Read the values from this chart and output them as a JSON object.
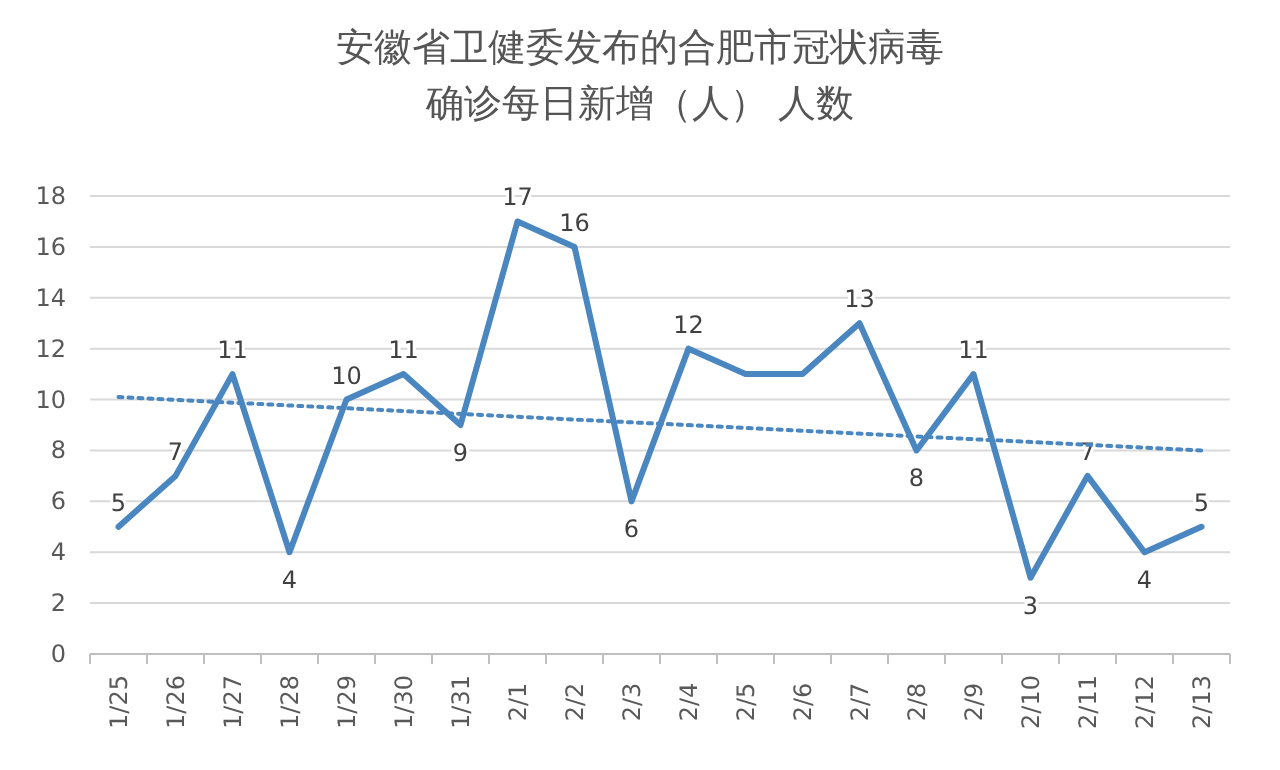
{
  "chart_data": {
    "type": "line",
    "title": "安徽省卫健委发布的合肥市冠状病毒确诊每日新增（人） 人数",
    "categories": [
      "1/25",
      "1/26",
      "1/27",
      "1/28",
      "1/29",
      "1/30",
      "1/31",
      "2/1",
      "2/2",
      "2/3",
      "2/4",
      "2/5",
      "2/6",
      "2/7",
      "2/8",
      "2/9",
      "2/10",
      "2/11",
      "2/12",
      "2/13"
    ],
    "series": [
      {
        "type": "line",
        "color": "#4a86c0",
        "values": [
          5,
          7,
          11,
          4,
          10,
          11,
          9,
          17,
          16,
          6,
          12,
          11,
          11,
          13,
          8,
          11,
          3,
          7,
          4,
          5
        ],
        "value_labels": [
          "5",
          "7",
          "11",
          "4",
          "10",
          "11",
          "9",
          "17",
          "16",
          "6",
          "12",
          null,
          null,
          "13",
          "8",
          "11",
          "3",
          "7",
          "4",
          "5"
        ]
      },
      {
        "type": "line",
        "color": "#4a86c0",
        "line_style": "dotted",
        "x": [
          "1/25",
          "2/13"
        ],
        "values": [
          10.1,
          8.0
        ]
      }
    ],
    "ylim": [
      0,
      18
    ],
    "yticks": [
      0,
      2,
      4,
      6,
      8,
      10,
      12,
      14,
      16,
      18
    ],
    "grid": "y",
    "marker": "none"
  }
}
